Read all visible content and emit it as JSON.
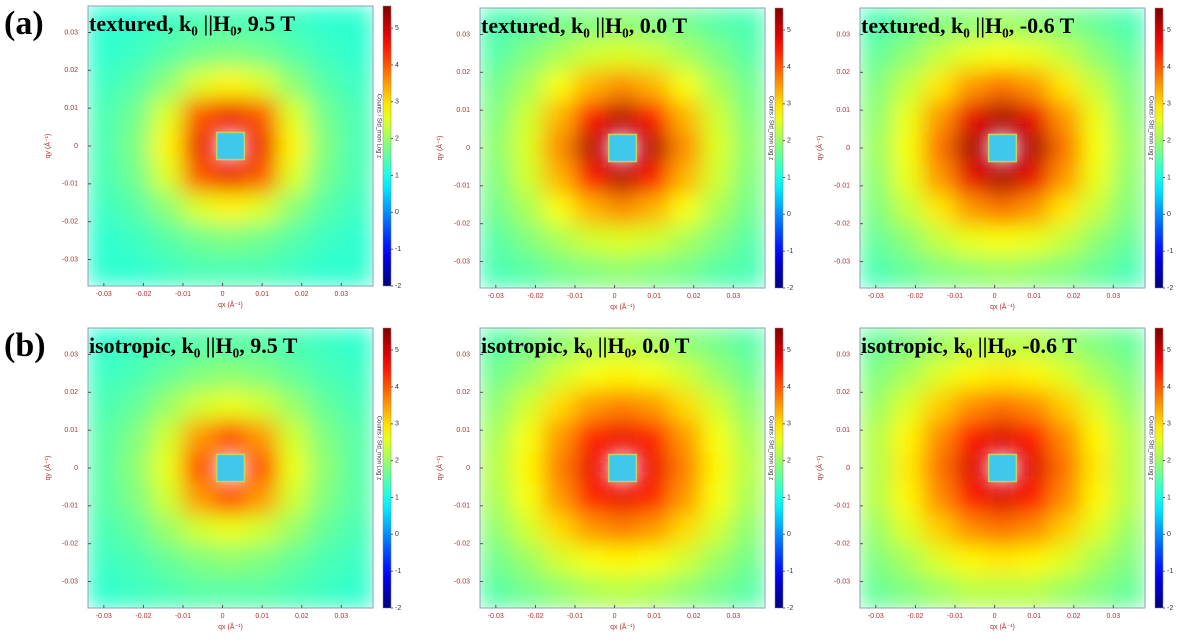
{
  "panel_labels": [
    "(a)",
    "(b)"
  ],
  "chart_data": [
    {
      "type": "heatmap",
      "title": "textured, k₀ ||H₀, 9.5 T",
      "xlabel": "qx (Å⁻¹)",
      "ylabel": "qy (Å⁻¹)",
      "colorbar_label": "Counts / Std_mon  Log z",
      "colormap": "jet",
      "xlim": [
        -0.034,
        0.038
      ],
      "ylim": [
        -0.037,
        0.037
      ],
      "xticks": [
        -0.03,
        -0.02,
        -0.01,
        0,
        0.01,
        0.02,
        0.03
      ],
      "yticks": [
        -0.03,
        -0.02,
        -0.01,
        0,
        0.01,
        0.02,
        0.03
      ],
      "clim": [
        -2,
        5.6
      ],
      "cticks": [
        -2,
        -1,
        0,
        1,
        2,
        3,
        4,
        5
      ],
      "z": [
        [
          1.2,
          1.2,
          1.3,
          1.4,
          1.4,
          1.4,
          1.3,
          1.2,
          1.2
        ],
        [
          1.2,
          1.3,
          1.5,
          1.7,
          1.8,
          1.7,
          1.5,
          1.3,
          1.2
        ],
        [
          1.3,
          1.5,
          1.9,
          2.5,
          2.8,
          2.5,
          1.9,
          1.5,
          1.3
        ],
        [
          1.4,
          1.7,
          2.5,
          4.0,
          4.8,
          4.0,
          2.5,
          1.7,
          1.4
        ],
        [
          1.4,
          1.8,
          2.8,
          4.8,
          null,
          4.8,
          2.8,
          1.8,
          1.4
        ],
        [
          1.4,
          1.7,
          2.5,
          4.0,
          4.8,
          4.0,
          2.5,
          1.7,
          1.4
        ],
        [
          1.3,
          1.5,
          1.9,
          2.5,
          2.8,
          2.5,
          1.9,
          1.5,
          1.3
        ],
        [
          1.2,
          1.3,
          1.5,
          1.7,
          1.8,
          1.7,
          1.5,
          1.3,
          1.2
        ],
        [
          1.2,
          1.2,
          1.3,
          1.4,
          1.4,
          1.4,
          1.3,
          1.2,
          1.2
        ]
      ]
    },
    {
      "type": "heatmap",
      "title": "textured, k₀ ||H₀, 0.0 T",
      "xlabel": "qx (Å⁻¹)",
      "ylabel": "qy (Å⁻¹)",
      "colorbar_label": "Counts / Std_mon  Log z",
      "colormap": "jet",
      "xlim": [
        -0.034,
        0.038
      ],
      "ylim": [
        -0.037,
        0.037
      ],
      "xticks": [
        -0.03,
        -0.02,
        -0.01,
        0,
        0.01,
        0.02,
        0.03
      ],
      "yticks": [
        -0.03,
        -0.02,
        -0.01,
        0,
        0.01,
        0.02,
        0.03
      ],
      "clim": [
        -2,
        5.6
      ],
      "cticks": [
        -2,
        -1,
        0,
        1,
        2,
        3,
        4,
        5
      ],
      "z": [
        [
          1.4,
          1.5,
          1.7,
          1.8,
          1.9,
          1.8,
          1.7,
          1.5,
          1.4
        ],
        [
          1.5,
          1.8,
          2.1,
          2.4,
          2.5,
          2.4,
          2.1,
          1.8,
          1.5
        ],
        [
          1.7,
          2.1,
          2.7,
          3.3,
          3.6,
          3.3,
          2.7,
          2.1,
          1.7
        ],
        [
          1.8,
          2.4,
          3.3,
          4.6,
          5.2,
          4.6,
          3.3,
          2.4,
          1.8
        ],
        [
          1.9,
          2.5,
          3.6,
          5.2,
          null,
          5.2,
          3.6,
          2.5,
          1.9
        ],
        [
          1.8,
          2.4,
          3.3,
          4.6,
          5.2,
          4.6,
          3.3,
          2.4,
          1.8
        ],
        [
          1.7,
          2.1,
          2.7,
          3.3,
          3.6,
          3.3,
          2.7,
          2.1,
          1.7
        ],
        [
          1.5,
          1.8,
          2.1,
          2.4,
          2.5,
          2.4,
          2.1,
          1.8,
          1.5
        ],
        [
          1.4,
          1.5,
          1.7,
          1.8,
          1.9,
          1.8,
          1.7,
          1.5,
          1.4
        ]
      ]
    },
    {
      "type": "heatmap",
      "title": "textured, k₀ ||H₀, -0.6 T",
      "xlabel": "qx (Å⁻¹)",
      "ylabel": "qy (Å⁻¹)",
      "colorbar_label": "Counts / Std_mon  Log z",
      "colormap": "jet",
      "xlim": [
        -0.034,
        0.038
      ],
      "ylim": [
        -0.037,
        0.037
      ],
      "xticks": [
        -0.03,
        -0.02,
        -0.01,
        0,
        0.01,
        0.02,
        0.03
      ],
      "yticks": [
        -0.03,
        -0.02,
        -0.01,
        0,
        0.01,
        0.02,
        0.03
      ],
      "clim": [
        -2,
        5.6
      ],
      "cticks": [
        -2,
        -1,
        0,
        1,
        2,
        3,
        4,
        5
      ],
      "z": [
        [
          1.4,
          1.6,
          1.8,
          1.9,
          2.0,
          1.9,
          1.8,
          1.6,
          1.4
        ],
        [
          1.6,
          1.9,
          2.3,
          2.6,
          2.7,
          2.6,
          2.3,
          1.9,
          1.6
        ],
        [
          1.8,
          2.3,
          2.9,
          3.5,
          3.8,
          3.5,
          2.9,
          2.3,
          1.8
        ],
        [
          1.9,
          2.6,
          3.5,
          4.8,
          5.3,
          4.8,
          3.5,
          2.6,
          1.9
        ],
        [
          2.0,
          2.7,
          3.8,
          5.3,
          null,
          5.3,
          3.8,
          2.7,
          2.0
        ],
        [
          1.9,
          2.6,
          3.5,
          4.8,
          5.3,
          4.8,
          3.5,
          2.6,
          1.9
        ],
        [
          1.8,
          2.3,
          2.9,
          3.5,
          3.8,
          3.5,
          2.9,
          2.3,
          1.8
        ],
        [
          1.6,
          1.9,
          2.3,
          2.6,
          2.7,
          2.6,
          2.3,
          1.9,
          1.6
        ],
        [
          1.4,
          1.6,
          1.8,
          1.9,
          2.0,
          1.9,
          1.8,
          1.6,
          1.4
        ]
      ]
    },
    {
      "type": "heatmap",
      "title": "isotropic, k₀ ||H₀, 9.5 T",
      "xlabel": "qx (Å⁻¹)",
      "ylabel": "qy (Å⁻¹)",
      "colorbar_label": "Counts / Std_mon  Log z",
      "colormap": "jet",
      "xlim": [
        -0.034,
        0.038
      ],
      "ylim": [
        -0.037,
        0.037
      ],
      "xticks": [
        -0.03,
        -0.02,
        -0.01,
        0,
        0.01,
        0.02,
        0.03
      ],
      "yticks": [
        -0.03,
        -0.02,
        -0.01,
        0,
        0.01,
        0.02,
        0.03
      ],
      "clim": [
        -2,
        5.6
      ],
      "cticks": [
        -2,
        -1,
        0,
        1,
        2,
        3,
        4,
        5
      ],
      "z": [
        [
          1.2,
          1.3,
          1.4,
          1.5,
          1.5,
          1.5,
          1.4,
          1.3,
          1.2
        ],
        [
          1.3,
          1.4,
          1.6,
          1.8,
          1.9,
          1.8,
          1.6,
          1.4,
          1.3
        ],
        [
          1.4,
          1.6,
          2.0,
          2.4,
          2.6,
          2.4,
          2.0,
          1.6,
          1.4
        ],
        [
          1.5,
          1.8,
          2.4,
          3.5,
          4.2,
          3.5,
          2.4,
          1.8,
          1.5
        ],
        [
          1.5,
          1.9,
          2.6,
          4.2,
          null,
          4.2,
          2.6,
          1.9,
          1.5
        ],
        [
          1.5,
          1.8,
          2.4,
          3.5,
          4.2,
          3.5,
          2.4,
          1.8,
          1.5
        ],
        [
          1.4,
          1.6,
          2.0,
          2.4,
          2.6,
          2.4,
          2.0,
          1.6,
          1.4
        ],
        [
          1.3,
          1.4,
          1.6,
          1.8,
          1.9,
          1.8,
          1.6,
          1.4,
          1.3
        ],
        [
          1.2,
          1.3,
          1.4,
          1.5,
          1.5,
          1.5,
          1.4,
          1.3,
          1.2
        ]
      ]
    },
    {
      "type": "heatmap",
      "title": "isotropic, k₀ ||H₀, 0.0 T",
      "xlabel": "qx (Å⁻¹)",
      "ylabel": "qy (Å⁻¹)",
      "colorbar_label": "Counts / Std_mon  Log z",
      "colormap": "jet",
      "xlim": [
        -0.034,
        0.038
      ],
      "ylim": [
        -0.037,
        0.037
      ],
      "xticks": [
        -0.03,
        -0.02,
        -0.01,
        0,
        0.01,
        0.02,
        0.03
      ],
      "yticks": [
        -0.03,
        -0.02,
        -0.01,
        0,
        0.01,
        0.02,
        0.03
      ],
      "clim": [
        -2,
        5.6
      ],
      "cticks": [
        -2,
        -1,
        0,
        1,
        2,
        3,
        4,
        5
      ],
      "z": [
        [
          1.5,
          1.7,
          1.9,
          2.1,
          2.2,
          2.1,
          1.9,
          1.7,
          1.5
        ],
        [
          1.7,
          2.0,
          2.4,
          2.7,
          2.8,
          2.7,
          2.4,
          2.0,
          1.7
        ],
        [
          1.9,
          2.4,
          3.0,
          3.5,
          3.7,
          3.5,
          3.0,
          2.4,
          1.9
        ],
        [
          2.1,
          2.7,
          3.5,
          4.4,
          4.8,
          4.4,
          3.5,
          2.7,
          2.1
        ],
        [
          2.2,
          2.8,
          3.7,
          4.8,
          null,
          4.8,
          3.7,
          2.8,
          2.2
        ],
        [
          2.1,
          2.7,
          3.5,
          4.4,
          4.8,
          4.4,
          3.5,
          2.7,
          2.1
        ],
        [
          1.9,
          2.4,
          3.0,
          3.5,
          3.7,
          3.5,
          3.0,
          2.4,
          1.9
        ],
        [
          1.7,
          2.0,
          2.4,
          2.7,
          2.8,
          2.7,
          2.4,
          2.0,
          1.7
        ],
        [
          1.5,
          1.7,
          1.9,
          2.1,
          2.2,
          2.1,
          1.9,
          1.7,
          1.5
        ]
      ]
    },
    {
      "type": "heatmap",
      "title": "isotropic, k₀ ||H₀, -0.6 T",
      "xlabel": "qx (Å⁻¹)",
      "ylabel": "qy (Å⁻¹)",
      "colorbar_label": "Counts / Std_mon  Log z",
      "colormap": "jet",
      "xlim": [
        -0.034,
        0.038
      ],
      "ylim": [
        -0.037,
        0.037
      ],
      "xticks": [
        -0.03,
        -0.02,
        -0.01,
        0,
        0.01,
        0.02,
        0.03
      ],
      "yticks": [
        -0.03,
        -0.02,
        -0.01,
        0,
        0.01,
        0.02,
        0.03
      ],
      "clim": [
        -2,
        5.6
      ],
      "cticks": [
        -2,
        -1,
        0,
        1,
        2,
        3,
        4,
        5
      ],
      "z": [
        [
          1.6,
          1.8,
          2.0,
          2.2,
          2.2,
          2.2,
          2.0,
          1.8,
          1.6
        ],
        [
          1.8,
          2.1,
          2.5,
          2.8,
          2.9,
          2.8,
          2.5,
          2.1,
          1.8
        ],
        [
          2.0,
          2.5,
          3.1,
          3.6,
          3.8,
          3.6,
          3.1,
          2.5,
          2.0
        ],
        [
          2.2,
          2.8,
          3.6,
          4.5,
          4.9,
          4.5,
          3.6,
          2.8,
          2.2
        ],
        [
          2.2,
          2.9,
          3.8,
          4.9,
          null,
          4.9,
          3.8,
          2.9,
          2.2
        ],
        [
          2.2,
          2.8,
          3.6,
          4.5,
          4.9,
          4.5,
          3.6,
          2.8,
          2.2
        ],
        [
          2.0,
          2.5,
          3.1,
          3.6,
          3.8,
          3.6,
          3.1,
          2.5,
          2.0
        ],
        [
          1.8,
          2.1,
          2.5,
          2.8,
          2.9,
          2.8,
          2.5,
          2.1,
          1.8
        ],
        [
          1.6,
          1.8,
          2.0,
          2.2,
          2.2,
          2.2,
          2.0,
          1.8,
          1.6
        ]
      ]
    }
  ]
}
